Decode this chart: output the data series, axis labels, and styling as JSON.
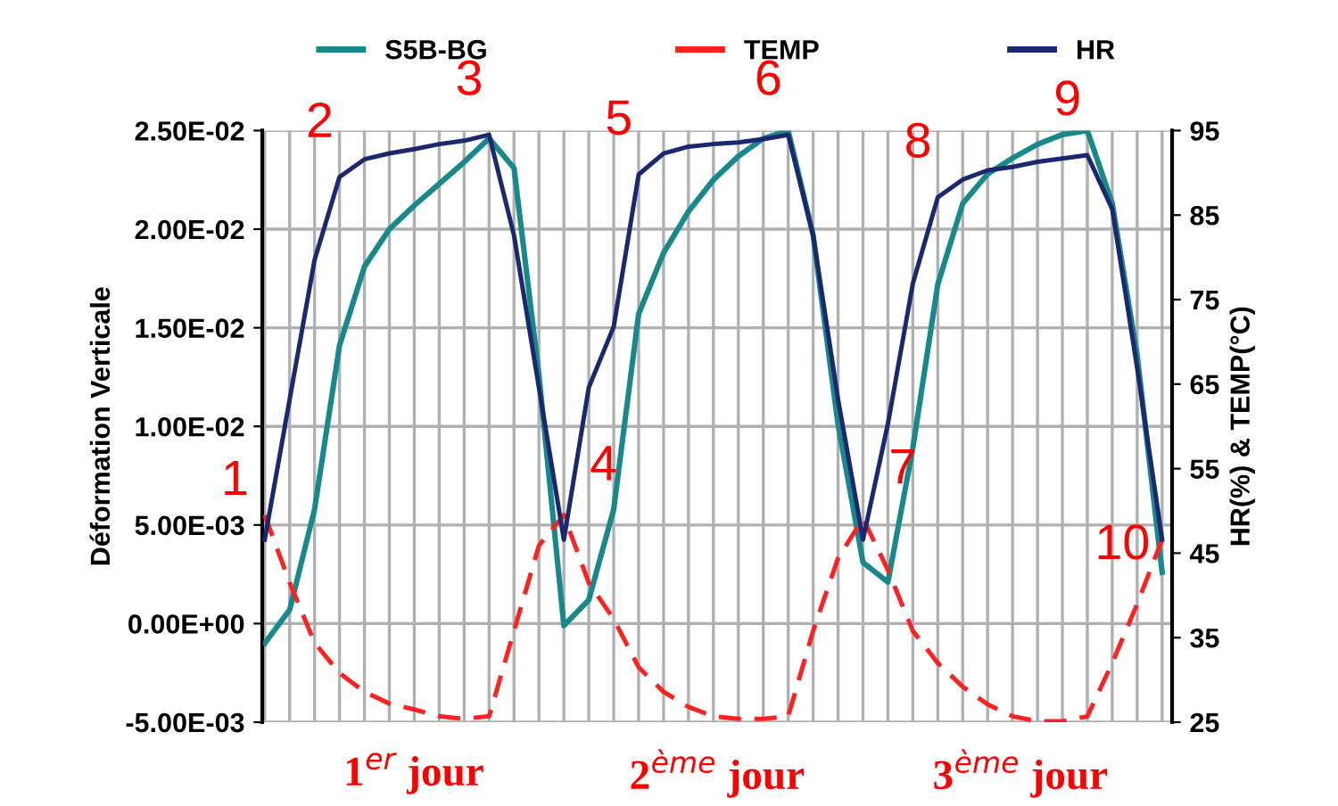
{
  "chart_data": {
    "type": "line",
    "categories": [
      null,
      null,
      null,
      null,
      null,
      null,
      null,
      null,
      null,
      null,
      null,
      null,
      null,
      null,
      null,
      null,
      null,
      null,
      null,
      null,
      null,
      null,
      null,
      null,
      null,
      null,
      null,
      null,
      null,
      null,
      null,
      null,
      null,
      null,
      null,
      null,
      null
    ],
    "ylim": [
      -0.005,
      0.025
    ],
    "yticks": [
      {
        "value": -0.005,
        "label": "-5.00E-03"
      },
      {
        "value": 0,
        "label": "0.00E+00"
      },
      {
        "value": 0.005,
        "label": "5.00E-03"
      },
      {
        "value": 0.01,
        "label": "1.00E-02"
      },
      {
        "value": 0.015,
        "label": "1.50E-02"
      },
      {
        "value": 0.02,
        "label": "2.00E-02"
      },
      {
        "value": 0.025,
        "label": "2.50E-02"
      }
    ],
    "y2lim": [
      25,
      95
    ],
    "y2ticks": [
      25,
      35,
      45,
      55,
      65,
      75,
      85,
      95
    ],
    "ylabel": "Déformation Verticale",
    "y2label": "HR(%) & TEMP(°C)",
    "grid": true,
    "legend": "top",
    "series": [
      {
        "name": "S5B-BG",
        "color": "#17898b",
        "line_style": "solid",
        "values": [
          -0.001,
          0.0007,
          0.0058,
          0.0141,
          0.0181,
          0.02,
          0.0212,
          0.0223,
          0.0234,
          0.0246,
          0.0231,
          0.0126,
          -0.0001,
          0.0012,
          0.0058,
          0.0157,
          0.0188,
          0.0209,
          0.0225,
          0.0237,
          0.0246,
          0.025,
          0.0197,
          0.0101,
          0.0031,
          0.0021,
          0.0089,
          0.0172,
          0.0213,
          0.0228,
          0.0236,
          0.0243,
          0.0248,
          0.025,
          0.0213,
          0.0136,
          0.0026
        ]
      },
      {
        "name": "TEMP",
        "color": "#ff2020",
        "axis": "y2",
        "line_style": "dashed",
        "values": [
          49.5,
          41.5,
          34.4,
          30.8,
          28.6,
          27.2,
          26.5,
          25.7,
          25.4,
          25.7,
          35.8,
          45.9,
          49.5,
          41.5,
          37.2,
          31.5,
          28.6,
          26.8,
          25.7,
          25.4,
          25.4,
          25.7,
          35.8,
          44.4,
          49.1,
          43.0,
          35.8,
          32.0,
          29.2,
          27.1,
          25.7,
          25.1,
          25.1,
          25.7,
          32.0,
          39.0,
          46.6
        ]
      },
      {
        "name": "HR",
        "color": "#1b2870",
        "axis": "y2",
        "line_style": "solid",
        "values": [
          46.6,
          63.2,
          79.7,
          89.5,
          91.6,
          92.3,
          92.8,
          93.4,
          93.8,
          94.5,
          82.6,
          64.6,
          46.6,
          64.6,
          71.8,
          89.8,
          92.3,
          93.1,
          93.4,
          93.6,
          94.0,
          94.5,
          82.6,
          63.2,
          46.6,
          60.3,
          76.9,
          87.1,
          89.2,
          90.3,
          90.7,
          91.3,
          91.7,
          92.1,
          85.7,
          66.9,
          46.6
        ]
      }
    ],
    "annotations": [
      "1",
      "2",
      "3",
      "4",
      "5",
      "6",
      "7",
      "8",
      "9",
      "10",
      "1$^{er}$ jour",
      "2$^{ème}$ jour",
      "3$^{ème}$ jour"
    ]
  }
}
